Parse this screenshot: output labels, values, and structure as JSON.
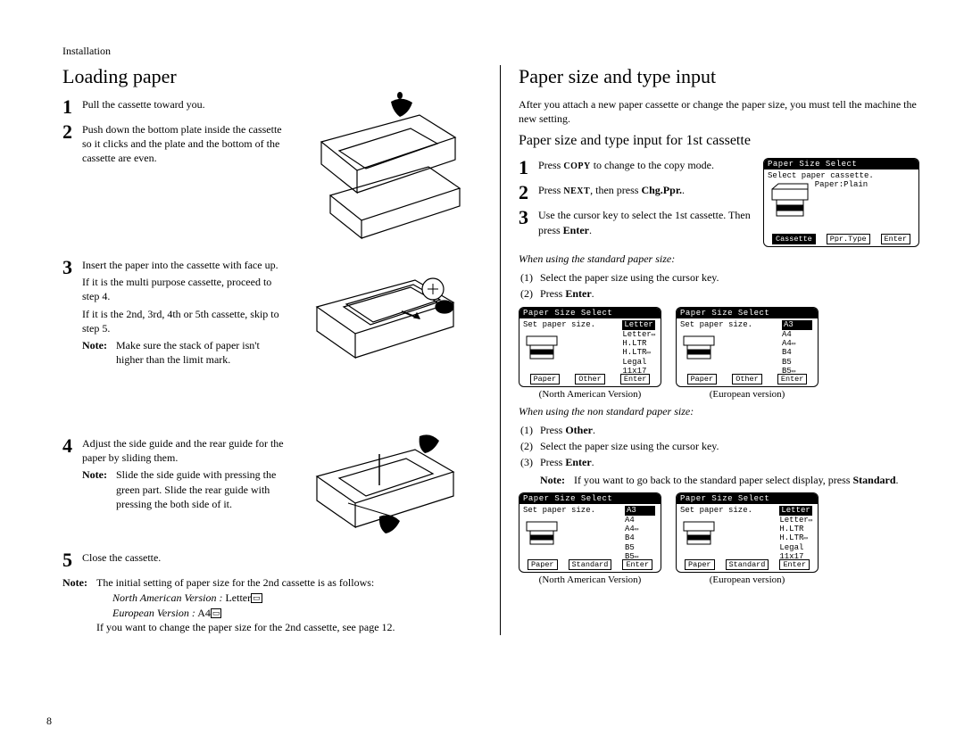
{
  "header": "Installation",
  "pageNum": "8",
  "left": {
    "title": "Loading paper",
    "steps": {
      "s1": "Pull the cassette toward you.",
      "s2": "Push down the bottom plate inside the cassette so it clicks and the plate and the bottom of the cassette are even.",
      "s3a": "Insert the paper into the cassette with face up.",
      "s3b": "If it is the multi purpose cassette, proceed to step 4.",
      "s3c": "If it is the 2nd, 3rd, 4th or 5th cassette, skip to step 5.",
      "s3note": "Make sure the stack of paper isn't higher than the limit mark.",
      "s4": "Adjust the side guide and the rear guide for the paper by sliding them.",
      "s4note": "Slide the side guide with pressing the green part. Slide the rear guide with pressing the both side of it.",
      "s5": "Close the cassette."
    },
    "foot": {
      "noteLabel": "Note:",
      "line1": "The initial setting of paper size for the 2nd cassette is as follows:",
      "na": "North American Version :",
      "naVal": " Letter",
      "eu": "European Version :",
      "euVal": " A4",
      "line2": "If you want to change the paper size for the 2nd cassette, see page 12."
    }
  },
  "right": {
    "title": "Paper size and type input",
    "intro": "After you attach a new paper cassette or change the paper size, you must tell the machine the new setting.",
    "subtitle": "Paper size and type input for 1st cassette",
    "steps": {
      "s1a": "Press ",
      "s1b": "COPY",
      "s1c": " to change to the copy mode.",
      "s2a": "Press ",
      "s2b": "NEXT",
      "s2c": ", then press ",
      "s2d": "Chg.Ppr.",
      "s3a": "Use the cursor key to select the 1st cassette. Then press ",
      "s3b": "Enter",
      "s3c": "."
    },
    "std": {
      "heading": "When using the standard paper size:",
      "l1": "Select the paper size using the cursor key.",
      "l2a": "Press ",
      "l2b": "Enter",
      "l2c": "."
    },
    "nonstd": {
      "heading": "When using the non standard paper size:",
      "l1a": "Press ",
      "l1b": "Other",
      "l1c": ".",
      "l2": "Select the paper size using the cursor key.",
      "l3a": "Press ",
      "l3b": "Enter",
      "l3c": ".",
      "noteLabel": "Note:",
      "note1": "If you want to go back to the standard paper select display, press ",
      "note2": "Standard",
      "note3": "."
    },
    "lcd": {
      "title": "Paper Size Select",
      "selCassette": "Select paper cassette.",
      "paperPlain": "Paper:Plain",
      "setSize": "Set paper size.",
      "btnCassette": "Cassette",
      "btnPprType": "Ppr.Type",
      "btnEnter": "Enter",
      "btnPaper": "Paper",
      "btnOther": "Other",
      "btnStandard": "Standard",
      "listNA": [
        "Letter",
        "Letter",
        "H.LTR",
        "H.LTR",
        "Legal",
        "11x17"
      ],
      "listEU": [
        "A3",
        "A4",
        "A4",
        "B4",
        "B5",
        "B5"
      ],
      "listNA2": [
        "A3",
        "A4",
        "A4",
        "B4",
        "B5",
        "B5"
      ],
      "listEU2": [
        "Letter",
        "Letter",
        "H.LTR",
        "H.LTR",
        "Legal",
        "11x17"
      ],
      "capNA": "(North American Version)",
      "capEU": "(European version)"
    }
  }
}
